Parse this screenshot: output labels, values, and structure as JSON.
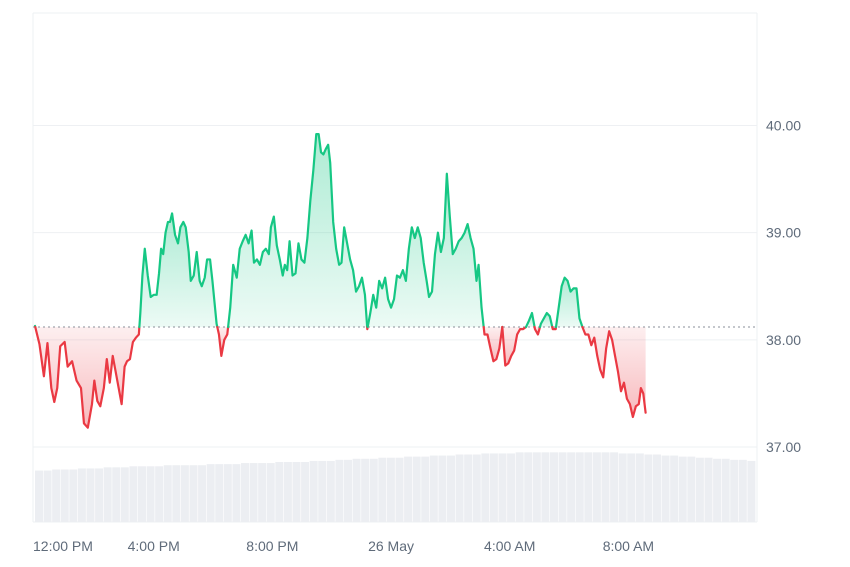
{
  "chart_data": {
    "type": "area",
    "baseline": 38.12,
    "ylim": [
      36.3,
      41.05
    ],
    "y_ticks": [
      "37.00",
      "38.00",
      "39.00",
      "40.00"
    ],
    "y_tick_values": [
      37,
      38,
      39,
      40
    ],
    "x_range": [
      0,
      24.3
    ],
    "x_ticks": [
      {
        "label": "12:00 PM",
        "x": 0
      },
      {
        "label": "4:00 PM",
        "x": 4
      },
      {
        "label": "8:00 PM",
        "x": 8
      },
      {
        "label": "26 May",
        "x": 12
      },
      {
        "label": "4:00 AM",
        "x": 16
      },
      {
        "label": "8:00 AM",
        "x": 20
      }
    ],
    "grid": true,
    "colors": {
      "up": "#16c784",
      "down": "#ea3943",
      "up_fill": "#16c784",
      "down_fill": "#ea3943",
      "grid": "#eef0f3",
      "volume": "#eceef2",
      "baseline": "#8a8f98"
    },
    "series": [
      {
        "values": [
          [
            0.0,
            38.13
          ],
          [
            0.15,
            37.96
          ],
          [
            0.3,
            37.66
          ],
          [
            0.42,
            37.97
          ],
          [
            0.55,
            37.55
          ],
          [
            0.65,
            37.42
          ],
          [
            0.75,
            37.55
          ],
          [
            0.85,
            37.94
          ],
          [
            1.0,
            37.98
          ],
          [
            1.1,
            37.75
          ],
          [
            1.25,
            37.8
          ],
          [
            1.4,
            37.62
          ],
          [
            1.55,
            37.55
          ],
          [
            1.65,
            37.22
          ],
          [
            1.78,
            37.18
          ],
          [
            1.92,
            37.4
          ],
          [
            2.0,
            37.62
          ],
          [
            2.1,
            37.43
          ],
          [
            2.2,
            37.38
          ],
          [
            2.32,
            37.55
          ],
          [
            2.42,
            37.82
          ],
          [
            2.52,
            37.6
          ],
          [
            2.62,
            37.85
          ],
          [
            2.72,
            37.7
          ],
          [
            2.82,
            37.55
          ],
          [
            2.92,
            37.4
          ],
          [
            3.02,
            37.75
          ],
          [
            3.1,
            37.8
          ],
          [
            3.2,
            37.82
          ],
          [
            3.3,
            37.98
          ],
          [
            3.4,
            38.02
          ],
          [
            3.5,
            38.05
          ],
          [
            3.55,
            38.25
          ],
          [
            3.62,
            38.6
          ],
          [
            3.7,
            38.85
          ],
          [
            3.8,
            38.6
          ],
          [
            3.9,
            38.4
          ],
          [
            4.0,
            38.42
          ],
          [
            4.1,
            38.42
          ],
          [
            4.18,
            38.62
          ],
          [
            4.25,
            38.85
          ],
          [
            4.32,
            38.8
          ],
          [
            4.4,
            39.0
          ],
          [
            4.48,
            39.1
          ],
          [
            4.55,
            39.1
          ],
          [
            4.62,
            39.18
          ],
          [
            4.72,
            38.98
          ],
          [
            4.82,
            38.9
          ],
          [
            4.9,
            39.05
          ],
          [
            5.0,
            39.1
          ],
          [
            5.08,
            39.05
          ],
          [
            5.18,
            38.82
          ],
          [
            5.25,
            38.55
          ],
          [
            5.35,
            38.6
          ],
          [
            5.45,
            38.82
          ],
          [
            5.55,
            38.55
          ],
          [
            5.62,
            38.5
          ],
          [
            5.72,
            38.58
          ],
          [
            5.8,
            38.75
          ],
          [
            5.9,
            38.75
          ],
          [
            5.98,
            38.55
          ],
          [
            6.05,
            38.35
          ],
          [
            6.12,
            38.15
          ],
          [
            6.2,
            38.05
          ],
          [
            6.28,
            37.85
          ],
          [
            6.38,
            38.0
          ],
          [
            6.48,
            38.05
          ],
          [
            6.58,
            38.3
          ],
          [
            6.68,
            38.7
          ],
          [
            6.8,
            38.58
          ],
          [
            6.9,
            38.85
          ],
          [
            7.0,
            38.92
          ],
          [
            7.1,
            38.98
          ],
          [
            7.2,
            38.9
          ],
          [
            7.3,
            39.02
          ],
          [
            7.38,
            38.72
          ],
          [
            7.48,
            38.75
          ],
          [
            7.58,
            38.7
          ],
          [
            7.68,
            38.82
          ],
          [
            7.78,
            38.85
          ],
          [
            7.88,
            38.8
          ],
          [
            7.95,
            39.05
          ],
          [
            8.05,
            39.15
          ],
          [
            8.15,
            38.88
          ],
          [
            8.25,
            38.75
          ],
          [
            8.35,
            38.6
          ],
          [
            8.42,
            38.7
          ],
          [
            8.5,
            38.65
          ],
          [
            8.58,
            38.92
          ],
          [
            8.68,
            38.6
          ],
          [
            8.78,
            38.62
          ],
          [
            8.88,
            38.9
          ],
          [
            8.98,
            38.75
          ],
          [
            9.08,
            38.72
          ],
          [
            9.18,
            38.95
          ],
          [
            9.28,
            39.3
          ],
          [
            9.38,
            39.58
          ],
          [
            9.48,
            39.92
          ],
          [
            9.56,
            39.92
          ],
          [
            9.64,
            39.75
          ],
          [
            9.72,
            39.73
          ],
          [
            9.8,
            39.78
          ],
          [
            9.88,
            39.82
          ],
          [
            9.95,
            39.65
          ],
          [
            10.05,
            39.1
          ],
          [
            10.15,
            38.85
          ],
          [
            10.25,
            38.7
          ],
          [
            10.33,
            38.72
          ],
          [
            10.42,
            39.05
          ],
          [
            10.52,
            38.9
          ],
          [
            10.62,
            38.75
          ],
          [
            10.72,
            38.65
          ],
          [
            10.82,
            38.45
          ],
          [
            10.92,
            38.5
          ],
          [
            11.02,
            38.58
          ],
          [
            11.12,
            38.42
          ],
          [
            11.2,
            38.1
          ],
          [
            11.3,
            38.25
          ],
          [
            11.4,
            38.42
          ],
          [
            11.5,
            38.3
          ],
          [
            11.6,
            38.55
          ],
          [
            11.7,
            38.48
          ],
          [
            11.8,
            38.58
          ],
          [
            11.9,
            38.38
          ],
          [
            12.0,
            38.3
          ],
          [
            12.1,
            38.38
          ],
          [
            12.2,
            38.6
          ],
          [
            12.3,
            38.58
          ],
          [
            12.4,
            38.65
          ],
          [
            12.5,
            38.55
          ],
          [
            12.6,
            38.85
          ],
          [
            12.7,
            39.05
          ],
          [
            12.8,
            38.95
          ],
          [
            12.9,
            39.05
          ],
          [
            13.0,
            38.95
          ],
          [
            13.1,
            38.72
          ],
          [
            13.2,
            38.55
          ],
          [
            13.28,
            38.4
          ],
          [
            13.38,
            38.45
          ],
          [
            13.48,
            38.8
          ],
          [
            13.58,
            39.0
          ],
          [
            13.68,
            38.82
          ],
          [
            13.78,
            38.95
          ],
          [
            13.88,
            39.55
          ],
          [
            13.98,
            39.15
          ],
          [
            14.08,
            38.8
          ],
          [
            14.18,
            38.85
          ],
          [
            14.28,
            38.92
          ],
          [
            14.38,
            38.95
          ],
          [
            14.48,
            39.0
          ],
          [
            14.58,
            39.08
          ],
          [
            14.68,
            38.95
          ],
          [
            14.78,
            38.85
          ],
          [
            14.88,
            38.55
          ],
          [
            14.95,
            38.7
          ],
          [
            15.05,
            38.3
          ],
          [
            15.15,
            38.05
          ],
          [
            15.25,
            38.05
          ],
          [
            15.35,
            37.92
          ],
          [
            15.45,
            37.8
          ],
          [
            15.55,
            37.82
          ],
          [
            15.65,
            37.92
          ],
          [
            15.75,
            38.12
          ],
          [
            15.85,
            37.76
          ],
          [
            15.95,
            37.78
          ],
          [
            16.05,
            37.85
          ],
          [
            16.15,
            37.9
          ],
          [
            16.25,
            38.05
          ],
          [
            16.35,
            38.1
          ],
          [
            16.45,
            38.1
          ],
          [
            16.55,
            38.12
          ],
          [
            16.65,
            38.18
          ],
          [
            16.75,
            38.25
          ],
          [
            16.85,
            38.1
          ],
          [
            16.95,
            38.05
          ],
          [
            17.05,
            38.15
          ],
          [
            17.15,
            38.2
          ],
          [
            17.25,
            38.25
          ],
          [
            17.35,
            38.22
          ],
          [
            17.45,
            38.1
          ],
          [
            17.55,
            38.1
          ],
          [
            17.65,
            38.3
          ],
          [
            17.75,
            38.5
          ],
          [
            17.85,
            38.58
          ],
          [
            17.95,
            38.55
          ],
          [
            18.05,
            38.45
          ],
          [
            18.15,
            38.48
          ],
          [
            18.25,
            38.48
          ],
          [
            18.35,
            38.2
          ],
          [
            18.45,
            38.12
          ],
          [
            18.55,
            38.05
          ],
          [
            18.65,
            38.05
          ],
          [
            18.75,
            37.95
          ],
          [
            18.85,
            38.02
          ],
          [
            18.95,
            37.85
          ],
          [
            19.05,
            37.72
          ],
          [
            19.15,
            37.65
          ],
          [
            19.25,
            37.92
          ],
          [
            19.35,
            38.08
          ],
          [
            19.45,
            38.0
          ],
          [
            19.55,
            37.85
          ],
          [
            19.65,
            37.7
          ],
          [
            19.75,
            37.52
          ],
          [
            19.85,
            37.6
          ],
          [
            19.95,
            37.45
          ],
          [
            20.05,
            37.4
          ],
          [
            20.15,
            37.28
          ],
          [
            20.25,
            37.38
          ],
          [
            20.35,
            37.4
          ],
          [
            20.42,
            37.55
          ],
          [
            20.5,
            37.5
          ],
          [
            20.58,
            37.32
          ]
        ]
      }
    ],
    "volume": [
      36.78,
      36.78,
      36.79,
      36.79,
      36.79,
      36.8,
      36.8,
      36.8,
      36.81,
      36.81,
      36.81,
      36.82,
      36.82,
      36.82,
      36.82,
      36.83,
      36.83,
      36.83,
      36.83,
      36.83,
      36.84,
      36.84,
      36.84,
      36.84,
      36.85,
      36.85,
      36.85,
      36.85,
      36.86,
      36.86,
      36.86,
      36.86,
      36.87,
      36.87,
      36.87,
      36.88,
      36.88,
      36.89,
      36.89,
      36.89,
      36.9,
      36.9,
      36.9,
      36.91,
      36.91,
      36.91,
      36.92,
      36.92,
      36.92,
      36.93,
      36.93,
      36.93,
      36.94,
      36.94,
      36.94,
      36.94,
      36.95,
      36.95,
      36.95,
      36.95,
      36.95,
      36.95,
      36.95,
      36.95,
      36.95,
      36.95,
      36.95,
      36.95,
      36.94,
      36.94,
      36.94,
      36.93,
      36.93,
      36.92,
      36.92,
      36.91,
      36.91,
      36.9,
      36.9,
      36.89,
      36.89,
      36.88,
      36.88,
      36.87
    ]
  }
}
